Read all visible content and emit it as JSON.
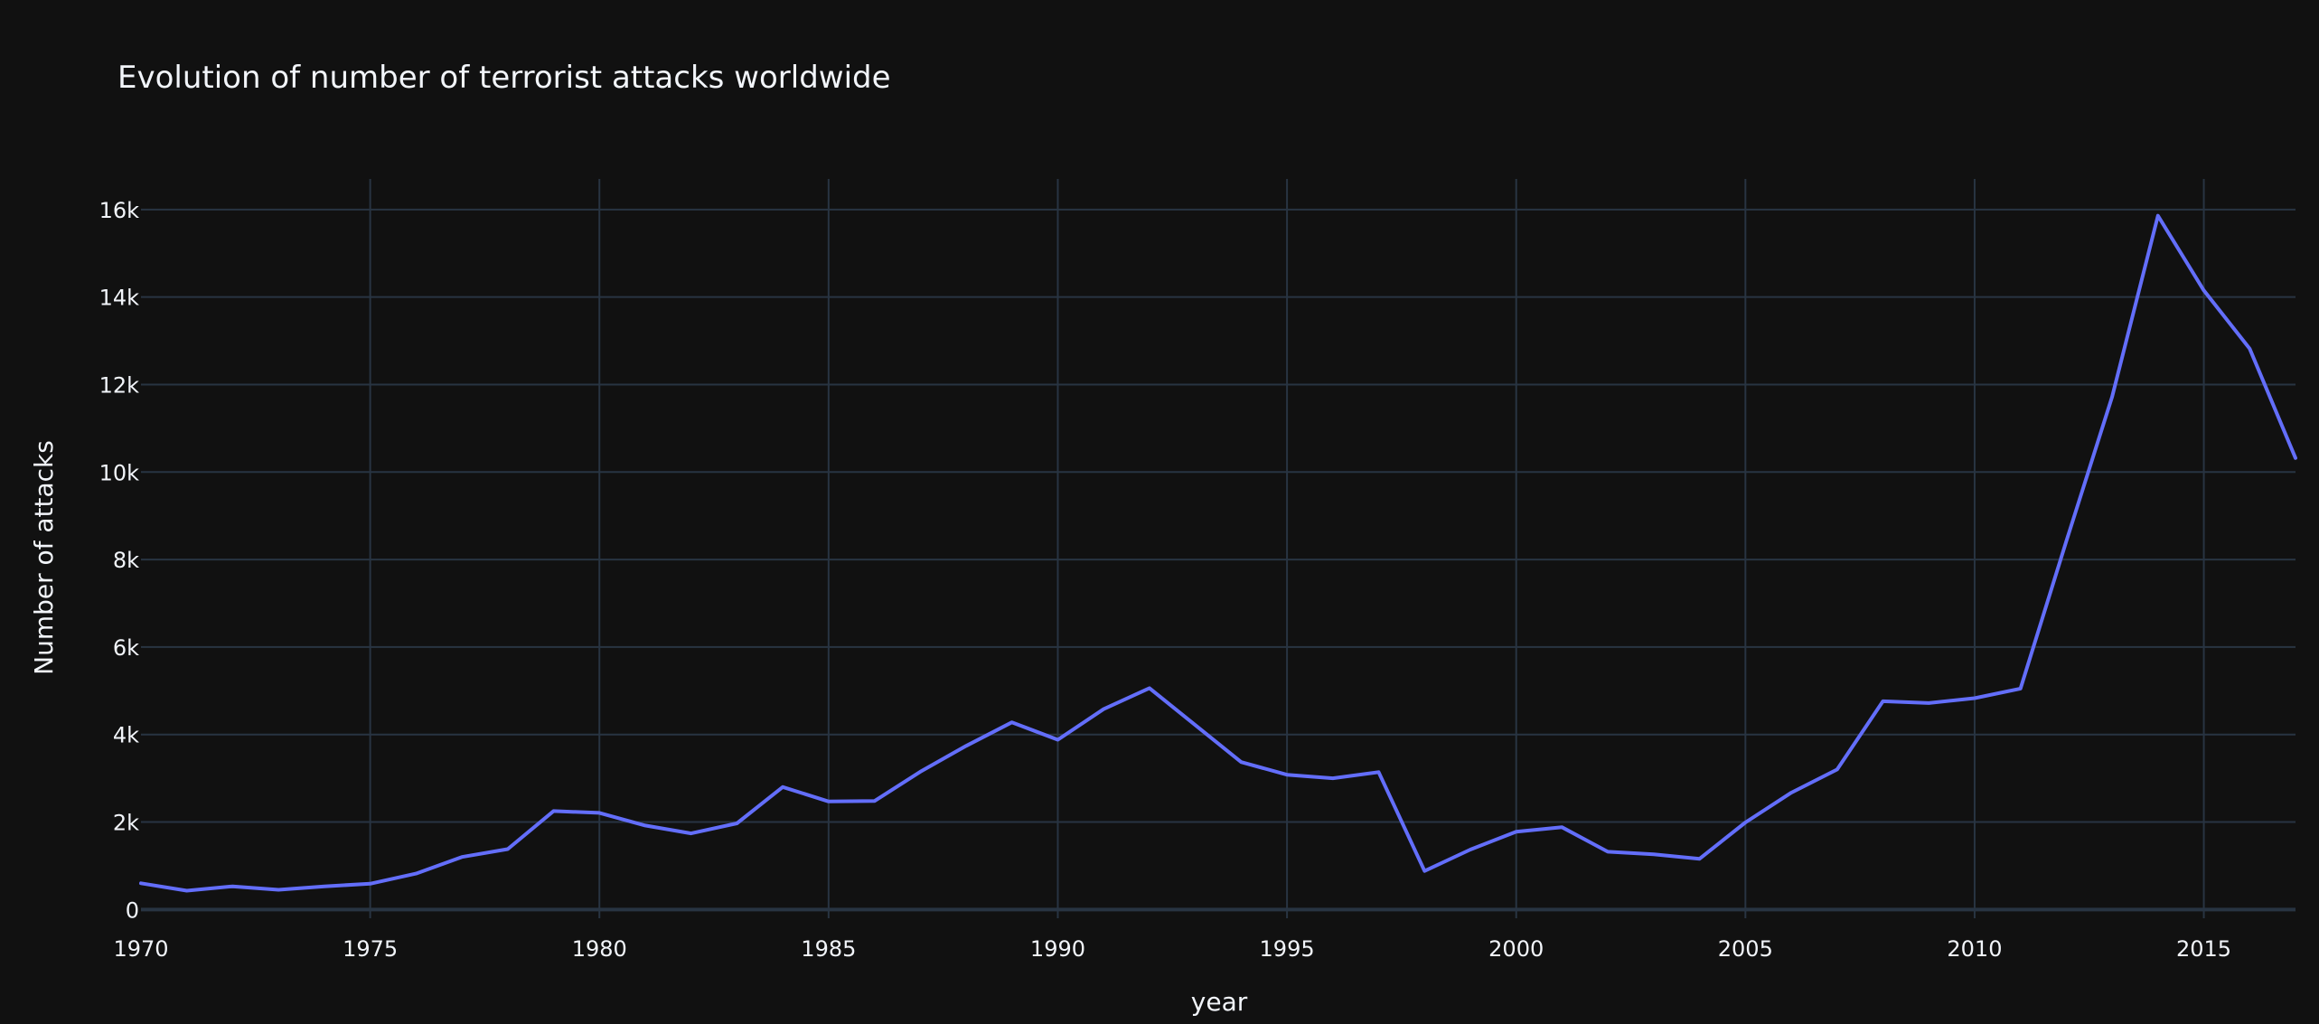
{
  "chart_data": {
    "type": "line",
    "title": "Evolution of number of terrorist attacks worldwide",
    "xlabel": "year",
    "ylabel": "Number of attacks",
    "xlim": [
      1970,
      2017
    ],
    "ylim": [
      -200,
      16700
    ],
    "x_ticks": [
      1970,
      1975,
      1980,
      1985,
      1990,
      1995,
      2000,
      2005,
      2010,
      2015
    ],
    "y_ticks": [
      0,
      2000,
      4000,
      6000,
      8000,
      10000,
      12000,
      14000,
      16000
    ],
    "y_tick_labels": [
      "0",
      "2k",
      "4k",
      "6k",
      "8k",
      "10k",
      "12k",
      "14k",
      "16k"
    ],
    "grid": true,
    "colors": {
      "background": "#111111",
      "grid": "#283442",
      "line": "#636efa",
      "text": "#f2f5fa"
    },
    "series": [
      {
        "color": "#636efa",
        "x": [
          1970,
          1971,
          1972,
          1973,
          1974,
          1975,
          1976,
          1977,
          1978,
          1979,
          1980,
          1981,
          1982,
          1983,
          1984,
          1985,
          1986,
          1987,
          1988,
          1989,
          1990,
          1991,
          1992,
          1994,
          1995,
          1996,
          1997,
          1998,
          1999,
          2000,
          2001,
          2002,
          2003,
          2004,
          2005,
          2006,
          2007,
          2008,
          2009,
          2010,
          2011,
          2012,
          2013,
          2014,
          2015,
          2016,
          2017
        ],
        "y": [
          600,
          430,
          530,
          450,
          530,
          590,
          820,
          1200,
          1380,
          2250,
          2210,
          1920,
          1740,
          1970,
          2800,
          2470,
          2480,
          3150,
          3740,
          4280,
          3880,
          4580,
          5060,
          3370,
          3080,
          3000,
          3140,
          880,
          1370,
          1780,
          1880,
          1320,
          1260,
          1160,
          1990,
          2670,
          3200,
          4760,
          4720,
          4830,
          5050,
          8420,
          11720,
          15860,
          14150,
          12820,
          10320
        ]
      }
    ]
  }
}
